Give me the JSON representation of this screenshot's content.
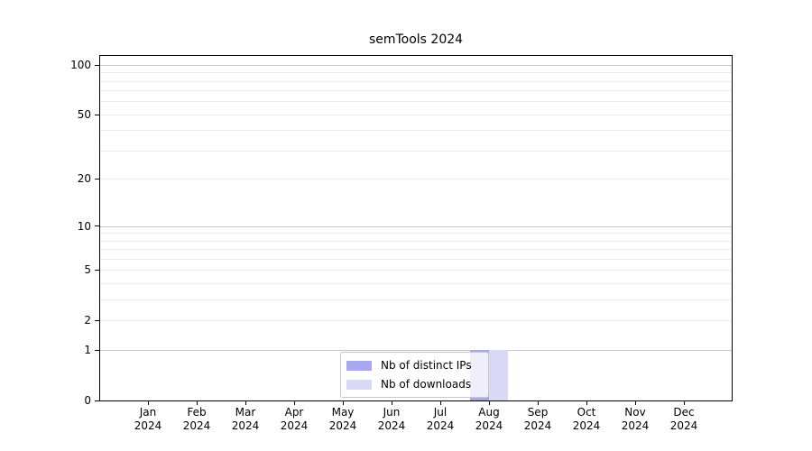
{
  "title": "semTools 2024",
  "chart_data": {
    "type": "bar",
    "title": "semTools 2024",
    "categories": [
      "Jan",
      "Feb",
      "Mar",
      "Apr",
      "May",
      "Jun",
      "Jul",
      "Aug",
      "Sep",
      "Oct",
      "Nov",
      "Dec"
    ],
    "x_year_line": "2024",
    "series": [
      {
        "name": "Nb of distinct IPs",
        "color": "#a8a8ee",
        "values": [
          0,
          0,
          0,
          0,
          0,
          0,
          0,
          1,
          0,
          0,
          0,
          0
        ]
      },
      {
        "name": "Nb of downloads",
        "color": "#d8d8f7",
        "values": [
          0,
          0,
          0,
          0,
          0,
          0,
          0,
          1,
          0,
          0,
          0,
          0
        ]
      }
    ],
    "yscale": "log1p",
    "ylim": [
      0,
      113
    ],
    "y_ticks": [
      {
        "value": 0,
        "label": "0"
      },
      {
        "value": 1,
        "label": "1"
      },
      {
        "value": 2,
        "label": "2"
      },
      {
        "value": 5,
        "label": "5"
      },
      {
        "value": 10,
        "label": "10"
      },
      {
        "value": 20,
        "label": "20"
      },
      {
        "value": 50,
        "label": "50"
      },
      {
        "value": 100,
        "label": "100"
      }
    ],
    "grid": {
      "major": [
        1,
        10,
        100
      ],
      "minor": [
        2,
        3,
        4,
        5,
        6,
        7,
        8,
        9,
        20,
        30,
        40,
        50,
        60,
        70,
        80,
        90
      ]
    },
    "legend": {
      "position": "lower center",
      "items": [
        "Nb of distinct IPs",
        "Nb of downloads"
      ]
    }
  },
  "colors": {
    "spine": "#000000",
    "major_grid": "#c6c6c6",
    "minor_grid": "#ececec"
  }
}
